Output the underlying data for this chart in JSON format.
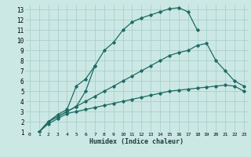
{
  "xlabel": "Humidex (Indice chaleur)",
  "bg_color": "#cce8e4",
  "grid_color": "#aacfcc",
  "line_color": "#1e6b65",
  "xlim": [
    -0.5,
    23.5
  ],
  "ylim": [
    1,
    13.5
  ],
  "xticks": [
    0,
    1,
    2,
    3,
    4,
    5,
    6,
    7,
    8,
    9,
    10,
    11,
    12,
    13,
    14,
    15,
    16,
    17,
    18,
    19,
    20,
    21,
    22,
    23
  ],
  "yticks": [
    1,
    2,
    3,
    4,
    5,
    6,
    7,
    8,
    9,
    10,
    11,
    12,
    13
  ],
  "series": [
    {
      "x": [
        1,
        2,
        3,
        4,
        5,
        6,
        7,
        8,
        9,
        10,
        11,
        12,
        13,
        14,
        15,
        16,
        17,
        18
      ],
      "y": [
        1,
        2,
        2.5,
        3.0,
        3.5,
        5.0,
        7.5,
        9.0,
        9.8,
        11.0,
        11.8,
        12.2,
        12.5,
        12.8,
        13.1,
        13.2,
        12.8,
        11.0
      ],
      "dashed": false
    },
    {
      "x": [
        1,
        2,
        3,
        4,
        5,
        6,
        7
      ],
      "y": [
        1,
        2,
        2.7,
        3.2,
        5.5,
        6.2,
        7.5
      ],
      "dashed": false
    },
    {
      "x": [
        1,
        2,
        3,
        4,
        5,
        6,
        7,
        8,
        9,
        10,
        11,
        12,
        13,
        14,
        15,
        16,
        17,
        18,
        19,
        20,
        21,
        22,
        23
      ],
      "y": [
        1,
        2,
        2.5,
        3.0,
        3.5,
        4.0,
        4.5,
        5.0,
        5.5,
        6.0,
        6.5,
        7.0,
        7.5,
        8.0,
        8.5,
        8.8,
        9.0,
        9.5,
        9.7,
        8.0,
        7.0,
        6.0,
        5.5
      ],
      "dashed": false
    },
    {
      "x": [
        1,
        2,
        3,
        4,
        5,
        6,
        7,
        8,
        9,
        10,
        11,
        12,
        13,
        14,
        15,
        16,
        17,
        18,
        19,
        20,
        21,
        22,
        23
      ],
      "y": [
        1,
        1.8,
        2.3,
        2.8,
        3.0,
        3.2,
        3.4,
        3.6,
        3.8,
        4.0,
        4.2,
        4.4,
        4.6,
        4.8,
        5.0,
        5.1,
        5.2,
        5.3,
        5.4,
        5.5,
        5.6,
        5.5,
        5.0
      ],
      "dashed": false
    }
  ]
}
